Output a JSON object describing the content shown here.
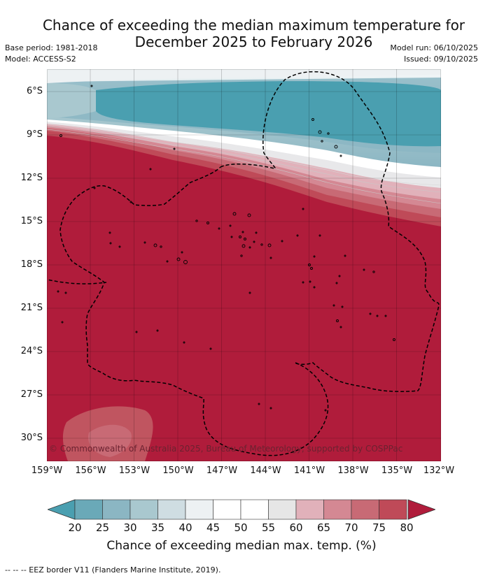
{
  "title": {
    "line1": "Chance of exceeding the median maximum temperature for",
    "line2": "December 2025 to February 2026"
  },
  "meta": {
    "base_period": "Base period: 1981-2018",
    "model": "Model: ACCESS-S2",
    "model_run": "Model run: 06/10/2025",
    "issued": "Issued: 09/10/2025"
  },
  "map": {
    "lat_labels": [
      "6°S",
      "9°S",
      "12°S",
      "15°S",
      "18°S",
      "21°S",
      "24°S",
      "27°S",
      "30°S"
    ],
    "lon_labels": [
      "159°W",
      "156°W",
      "153°W",
      "150°W",
      "147°W",
      "144°W",
      "141°W",
      "138°W",
      "135°W",
      "132°W"
    ],
    "copyright": "© Commonwealth of Australia 2025, Bureau of Meteorology, supported by COSPPac"
  },
  "colorbar": {
    "ticks": [
      "20",
      "25",
      "30",
      "35",
      "40",
      "45",
      "50",
      "55",
      "60",
      "65",
      "70",
      "75",
      "80"
    ],
    "colors": [
      "#6aa9b8",
      "#8bb6c3",
      "#a9c8cf",
      "#cfdde2",
      "#edf1f3",
      "#ffffff",
      "#ffffff",
      "#e6e6e6",
      "#e1b1ba",
      "#d48893",
      "#c86a75",
      "#bf4a58"
    ],
    "low_color": "#4a9fb0",
    "high_color": "#b01c3b",
    "title": "Chance of exceeding median max. temp. (%)"
  },
  "footer": {
    "legend": "--  --  -- EEZ border V11 (Flanders Marine Institute, 2019)."
  }
}
